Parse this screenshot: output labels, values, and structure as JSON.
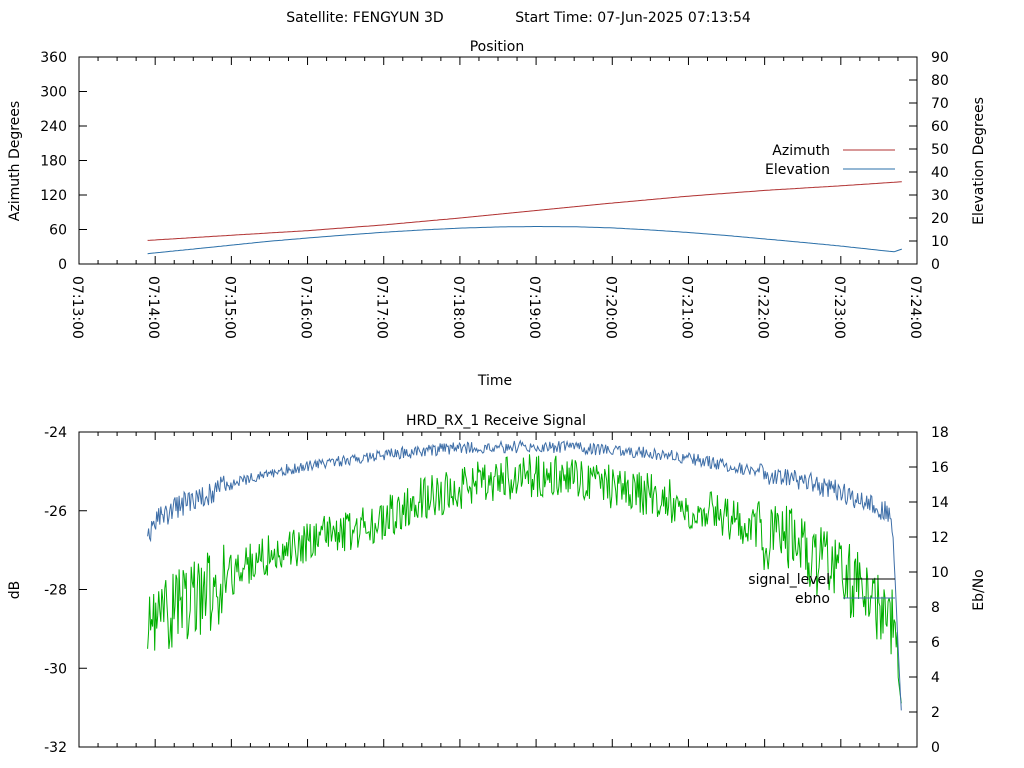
{
  "header": {
    "satellite_label": "Satellite: FENGYUN 3D",
    "start_label": "Start Time: 07-Jun-2025 07:13:54"
  },
  "colors": {
    "azimuth": "#b03030",
    "elevation": "#2a6fa8",
    "ebno": "#3f6fa8",
    "signal": "#00b000"
  },
  "chart_data": [
    {
      "type": "line",
      "title": "Position",
      "xlabel": "Time",
      "ylabel": "Azimuth Degrees",
      "y2label": "Elevation Degrees",
      "xlim": [
        "07:13:00",
        "07:24:00"
      ],
      "ylim": [
        0,
        360
      ],
      "y2lim": [
        0,
        90
      ],
      "x_ticks": [
        "07:13:00",
        "07:14:00",
        "07:15:00",
        "07:16:00",
        "07:17:00",
        "07:18:00",
        "07:19:00",
        "07:20:00",
        "07:21:00",
        "07:22:00",
        "07:23:00",
        "07:24:00"
      ],
      "y_ticks": [
        "0",
        "60",
        "120",
        "180",
        "240",
        "300",
        "360"
      ],
      "y2_ticks": [
        "0",
        "10",
        "20",
        "30",
        "40",
        "50",
        "60",
        "70",
        "80",
        "90"
      ],
      "legend": "right",
      "series": [
        {
          "name": "Azimuth",
          "axis": "y1",
          "x": [
            "07:13:54",
            "07:15:00",
            "07:16:00",
            "07:17:00",
            "07:18:00",
            "07:19:00",
            "07:20:00",
            "07:21:00",
            "07:22:00",
            "07:23:00",
            "07:23:48"
          ],
          "values": [
            41,
            50,
            58,
            68,
            80,
            93,
            106,
            118,
            128,
            136,
            143
          ]
        },
        {
          "name": "Elevation",
          "axis": "y2",
          "x": [
            "07:13:54",
            "07:14:30",
            "07:15:00",
            "07:15:30",
            "07:16:00",
            "07:16:30",
            "07:17:00",
            "07:17:30",
            "07:18:00",
            "07:18:30",
            "07:19:00",
            "07:19:30",
            "07:20:00",
            "07:20:30",
            "07:21:00",
            "07:21:30",
            "07:22:00",
            "07:22:30",
            "07:23:00",
            "07:23:30",
            "07:23:42",
            "07:23:48"
          ],
          "values": [
            4.5,
            6.5,
            8.2,
            9.9,
            11.3,
            12.6,
            13.8,
            14.8,
            15.6,
            16.1,
            16.3,
            16.2,
            15.7,
            14.8,
            13.7,
            12.4,
            10.9,
            9.4,
            7.8,
            6.0,
            5.3,
            6.5
          ]
        }
      ]
    },
    {
      "type": "line",
      "title": "HRD_RX_1 Receive Signal",
      "xlabel": "",
      "ylabel": "dB",
      "y2label": "Eb/No",
      "xlim": [
        "07:13:00",
        "07:24:00"
      ],
      "ylim": [
        -32,
        -24
      ],
      "y2lim": [
        0,
        18
      ],
      "y_ticks": [
        "-32",
        "-30",
        "-28",
        "-26",
        "-24"
      ],
      "y2_ticks": [
        "0",
        "2",
        "4",
        "6",
        "8",
        "10",
        "12",
        "14",
        "16",
        "18"
      ],
      "legend": "right",
      "series": [
        {
          "name": "signal_level",
          "axis": "y1",
          "x": [
            "07:13:54",
            "07:14:00",
            "07:14:30",
            "07:15:00",
            "07:15:30",
            "07:16:00",
            "07:16:30",
            "07:17:00",
            "07:17:30",
            "07:18:00",
            "07:18:30",
            "07:19:00",
            "07:19:30",
            "07:20:00",
            "07:20:30",
            "07:21:00",
            "07:21:30",
            "07:22:00",
            "07:22:30",
            "07:23:00",
            "07:23:20",
            "07:23:40",
            "07:23:48"
          ],
          "values": [
            -29.3,
            -28.9,
            -28.3,
            -27.6,
            -27.1,
            -26.8,
            -26.5,
            -26.2,
            -25.7,
            -25.4,
            -25.2,
            -25.1,
            -25.2,
            -25.4,
            -25.6,
            -25.9,
            -26.2,
            -26.6,
            -27.0,
            -27.6,
            -28.1,
            -28.8,
            -31.0
          ]
        },
        {
          "name": "ebno",
          "axis": "y2",
          "x": [
            "07:13:54",
            "07:14:00",
            "07:14:30",
            "07:15:00",
            "07:15:30",
            "07:16:00",
            "07:16:30",
            "07:17:00",
            "07:17:30",
            "07:18:00",
            "07:18:30",
            "07:19:00",
            "07:19:30",
            "07:20:00",
            "07:20:30",
            "07:21:00",
            "07:21:30",
            "07:22:00",
            "07:22:30",
            "07:23:00",
            "07:23:20",
            "07:23:40",
            "07:23:48"
          ],
          "values": [
            11.8,
            12.9,
            14.2,
            15.0,
            15.6,
            16.1,
            16.4,
            16.7,
            16.9,
            17.1,
            17.1,
            17.2,
            17.1,
            16.9,
            16.8,
            16.5,
            16.1,
            15.6,
            15.2,
            14.6,
            13.9,
            13.3,
            1.5
          ]
        }
      ]
    }
  ]
}
